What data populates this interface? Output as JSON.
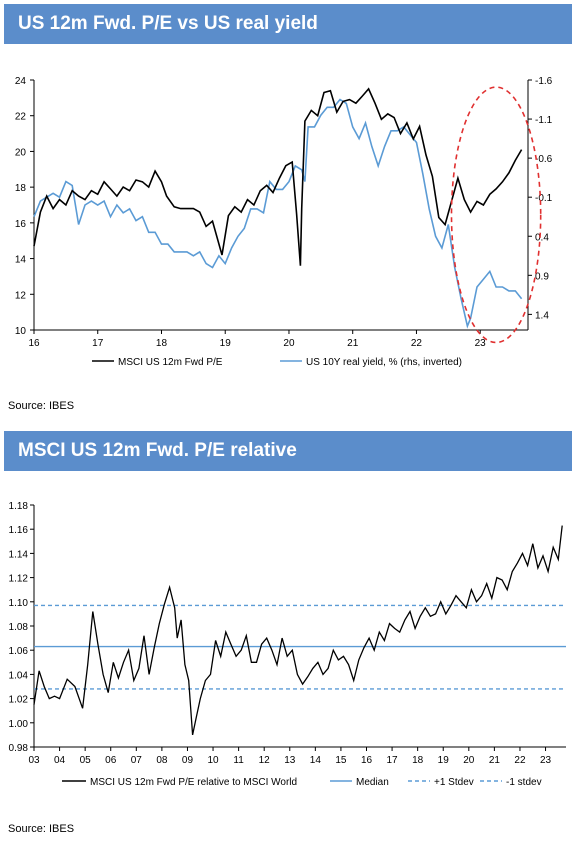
{
  "charts": {
    "top": {
      "banner": "US 12m Fwd. P/E vs US real yield",
      "source": "Source: IBES"
    },
    "bottom": {
      "banner": "MSCI US 12m Fwd. P/E relative",
      "source": "Source: IBES"
    }
  },
  "colors": {
    "banner": "#5b8dcb",
    "black_series": "#000000",
    "blue_series": "#5b9bd5",
    "highlight_ellipse": "#e03030"
  },
  "chart_data": [
    {
      "type": "line",
      "title": "US 12m Fwd. P/E vs US real yield",
      "x_tick_labels": [
        "16",
        "17",
        "18",
        "19",
        "20",
        "21",
        "22",
        "23"
      ],
      "x_range": [
        2016.0,
        2023.75
      ],
      "y_left_ticks": [
        "24",
        "22",
        "20",
        "18",
        "16",
        "14",
        "12",
        "10"
      ],
      "ylim_left": [
        10,
        24
      ],
      "y_right_ticks": [
        "-1.6",
        "-1.1",
        "-0.6",
        "-0.1",
        "0.4",
        "0.9",
        "1.4"
      ],
      "ylim_right_inverted": [
        -1.6,
        1.6
      ],
      "legend": "bottom",
      "annotation": "red dashed ellipse highlighting 2022.8-2023.75",
      "series": [
        {
          "name": "MSCI US 12m Fwd P/E",
          "color": "#000000",
          "x": [
            2016.0,
            2016.1,
            2016.2,
            2016.3,
            2016.4,
            2016.5,
            2016.6,
            2016.7,
            2016.8,
            2016.9,
            2017.0,
            2017.1,
            2017.2,
            2017.3,
            2017.4,
            2017.5,
            2017.6,
            2017.7,
            2017.8,
            2017.9,
            2018.0,
            2018.08,
            2018.2,
            2018.3,
            2018.4,
            2018.5,
            2018.6,
            2018.7,
            2018.8,
            2018.95,
            2019.05,
            2019.15,
            2019.25,
            2019.35,
            2019.45,
            2019.55,
            2019.65,
            2019.75,
            2019.85,
            2019.95,
            2020.05,
            2020.12,
            2020.18,
            2020.2,
            2020.25,
            2020.35,
            2020.45,
            2020.55,
            2020.65,
            2020.75,
            2020.85,
            2020.95,
            2021.05,
            2021.15,
            2021.25,
            2021.35,
            2021.45,
            2021.55,
            2021.65,
            2021.75,
            2021.85,
            2021.95,
            2022.05,
            2022.15,
            2022.25,
            2022.35,
            2022.45,
            2022.55,
            2022.65,
            2022.75,
            2022.85,
            2022.95,
            2023.05,
            2023.15,
            2023.25,
            2023.35,
            2023.45,
            2023.55,
            2023.65
          ],
          "values": [
            14.7,
            16.6,
            17.5,
            16.8,
            17.3,
            17.0,
            17.8,
            17.5,
            17.3,
            17.8,
            17.6,
            18.3,
            17.9,
            17.5,
            18.0,
            17.8,
            18.4,
            18.3,
            18.0,
            18.9,
            18.3,
            17.5,
            16.9,
            16.8,
            16.8,
            16.8,
            16.6,
            15.8,
            16.1,
            14.2,
            16.4,
            16.9,
            16.6,
            17.3,
            17.0,
            17.8,
            18.1,
            17.7,
            18.5,
            19.2,
            19.4,
            16.5,
            13.6,
            16.8,
            21.7,
            22.3,
            22.0,
            23.3,
            23.4,
            22.2,
            22.8,
            22.9,
            22.7,
            23.1,
            23.5,
            22.7,
            21.8,
            22.1,
            21.9,
            21.0,
            21.6,
            20.7,
            21.4,
            19.8,
            18.6,
            16.3,
            15.9,
            17.2,
            18.5,
            17.3,
            16.6,
            17.2,
            17.0,
            17.6,
            17.9,
            18.3,
            18.8,
            19.5,
            20.1
          ]
        },
        {
          "name": "US 10Y real yield, % (rhs, inverted)",
          "color": "#5b9bd5",
          "x": [
            2016.0,
            2016.1,
            2016.2,
            2016.3,
            2016.4,
            2016.5,
            2016.6,
            2016.7,
            2016.8,
            2016.9,
            2017.0,
            2017.1,
            2017.2,
            2017.3,
            2017.4,
            2017.5,
            2017.6,
            2017.7,
            2017.8,
            2017.9,
            2018.0,
            2018.1,
            2018.2,
            2018.3,
            2018.4,
            2018.5,
            2018.6,
            2018.7,
            2018.8,
            2018.9,
            2019.0,
            2019.1,
            2019.2,
            2019.3,
            2019.4,
            2019.5,
            2019.6,
            2019.7,
            2019.8,
            2019.9,
            2020.0,
            2020.1,
            2020.2,
            2020.25,
            2020.3,
            2020.4,
            2020.5,
            2020.6,
            2020.7,
            2020.8,
            2020.9,
            2021.0,
            2021.1,
            2021.2,
            2021.3,
            2021.4,
            2021.5,
            2021.6,
            2021.7,
            2021.8,
            2021.9,
            2022.0,
            2022.1,
            2022.2,
            2022.3,
            2022.4,
            2022.5,
            2022.6,
            2022.7,
            2022.8,
            2022.85,
            2022.95,
            2023.05,
            2023.15,
            2023.25,
            2023.35,
            2023.45,
            2023.55,
            2023.65
          ],
          "values": [
            0.15,
            -0.05,
            -0.1,
            -0.15,
            -0.1,
            -0.3,
            -0.25,
            0.25,
            0.0,
            -0.05,
            0.0,
            -0.05,
            0.15,
            0.0,
            0.1,
            0.05,
            0.2,
            0.15,
            0.35,
            0.35,
            0.5,
            0.5,
            0.6,
            0.6,
            0.6,
            0.65,
            0.6,
            0.75,
            0.8,
            0.65,
            0.75,
            0.55,
            0.4,
            0.3,
            0.05,
            0.05,
            0.1,
            -0.3,
            -0.2,
            -0.2,
            -0.3,
            -0.5,
            -0.45,
            -0.3,
            -1.0,
            -1.0,
            -1.15,
            -1.25,
            -1.25,
            -1.35,
            -1.3,
            -1.0,
            -0.85,
            -1.05,
            -0.75,
            -0.5,
            -0.75,
            -0.95,
            -0.95,
            -1.0,
            -0.9,
            -0.8,
            -0.4,
            0.05,
            0.4,
            0.55,
            0.25,
            0.8,
            1.2,
            1.55,
            1.45,
            1.05,
            0.95,
            0.85,
            1.05,
            1.05,
            1.1,
            1.1,
            1.2
          ]
        }
      ]
    },
    {
      "type": "line",
      "title": "MSCI US 12m Fwd. P/E relative",
      "x_tick_labels": [
        "03",
        "04",
        "05",
        "06",
        "07",
        "08",
        "09",
        "10",
        "11",
        "12",
        "13",
        "14",
        "15",
        "16",
        "17",
        "18",
        "19",
        "20",
        "21",
        "22",
        "23"
      ],
      "x_range": [
        2003.0,
        2023.8
      ],
      "y_ticks": [
        "1.18",
        "1.16",
        "1.14",
        "1.12",
        "1.10",
        "1.08",
        "1.06",
        "1.04",
        "1.02",
        "1.00",
        "0.98"
      ],
      "ylim": [
        0.98,
        1.18
      ],
      "legend": "bottom",
      "series": [
        {
          "name": "MSCI US 12m Fwd P/E relative to MSCI World",
          "color": "#000000",
          "x": [
            2003.0,
            2003.2,
            2003.4,
            2003.6,
            2003.8,
            2004.0,
            2004.3,
            2004.6,
            2004.9,
            2005.1,
            2005.3,
            2005.5,
            2005.7,
            2005.9,
            2006.1,
            2006.3,
            2006.5,
            2006.7,
            2006.9,
            2007.1,
            2007.3,
            2007.5,
            2007.7,
            2007.9,
            2008.1,
            2008.3,
            2008.5,
            2008.6,
            2008.75,
            2008.9,
            2009.05,
            2009.2,
            2009.35,
            2009.5,
            2009.7,
            2009.9,
            2010.1,
            2010.3,
            2010.5,
            2010.7,
            2010.9,
            2011.1,
            2011.3,
            2011.5,
            2011.7,
            2011.9,
            2012.1,
            2012.3,
            2012.5,
            2012.7,
            2012.9,
            2013.1,
            2013.3,
            2013.5,
            2013.7,
            2013.9,
            2014.1,
            2014.3,
            2014.5,
            2014.7,
            2014.9,
            2015.1,
            2015.3,
            2015.5,
            2015.7,
            2015.9,
            2016.1,
            2016.3,
            2016.5,
            2016.7,
            2016.9,
            2017.1,
            2017.3,
            2017.5,
            2017.7,
            2017.9,
            2018.1,
            2018.3,
            2018.5,
            2018.7,
            2018.9,
            2019.1,
            2019.3,
            2019.5,
            2019.7,
            2019.9,
            2020.1,
            2020.3,
            2020.5,
            2020.7,
            2020.9,
            2021.1,
            2021.3,
            2021.5,
            2021.7,
            2021.9,
            2022.1,
            2022.3,
            2022.5,
            2022.7,
            2022.9,
            2023.1,
            2023.3,
            2023.5,
            2023.65
          ],
          "values": [
            1.015,
            1.043,
            1.03,
            1.02,
            1.022,
            1.02,
            1.036,
            1.03,
            1.012,
            1.048,
            1.092,
            1.065,
            1.04,
            1.025,
            1.05,
            1.037,
            1.05,
            1.06,
            1.035,
            1.045,
            1.072,
            1.04,
            1.062,
            1.082,
            1.098,
            1.112,
            1.095,
            1.07,
            1.085,
            1.048,
            1.035,
            0.99,
            1.005,
            1.02,
            1.035,
            1.04,
            1.068,
            1.055,
            1.075,
            1.065,
            1.055,
            1.06,
            1.072,
            1.05,
            1.05,
            1.065,
            1.07,
            1.06,
            1.048,
            1.07,
            1.055,
            1.06,
            1.04,
            1.032,
            1.038,
            1.045,
            1.05,
            1.04,
            1.045,
            1.06,
            1.052,
            1.055,
            1.048,
            1.035,
            1.052,
            1.062,
            1.07,
            1.06,
            1.075,
            1.068,
            1.082,
            1.078,
            1.075,
            1.085,
            1.092,
            1.078,
            1.088,
            1.095,
            1.088,
            1.09,
            1.1,
            1.09,
            1.097,
            1.105,
            1.1,
            1.095,
            1.11,
            1.1,
            1.105,
            1.115,
            1.103,
            1.12,
            1.118,
            1.11,
            1.125,
            1.132,
            1.14,
            1.13,
            1.148,
            1.128,
            1.138,
            1.125,
            1.145,
            1.135,
            1.163
          ]
        },
        {
          "name": "Median",
          "color": "#5b9bd5",
          "style": "solid",
          "value": 1.063
        },
        {
          "name": "+1 Stdev",
          "color": "#5b9bd5",
          "style": "dashed",
          "value": 1.097
        },
        {
          "name": "-1 stdev",
          "color": "#5b9bd5",
          "style": "dashed",
          "value": 1.028
        }
      ]
    }
  ]
}
